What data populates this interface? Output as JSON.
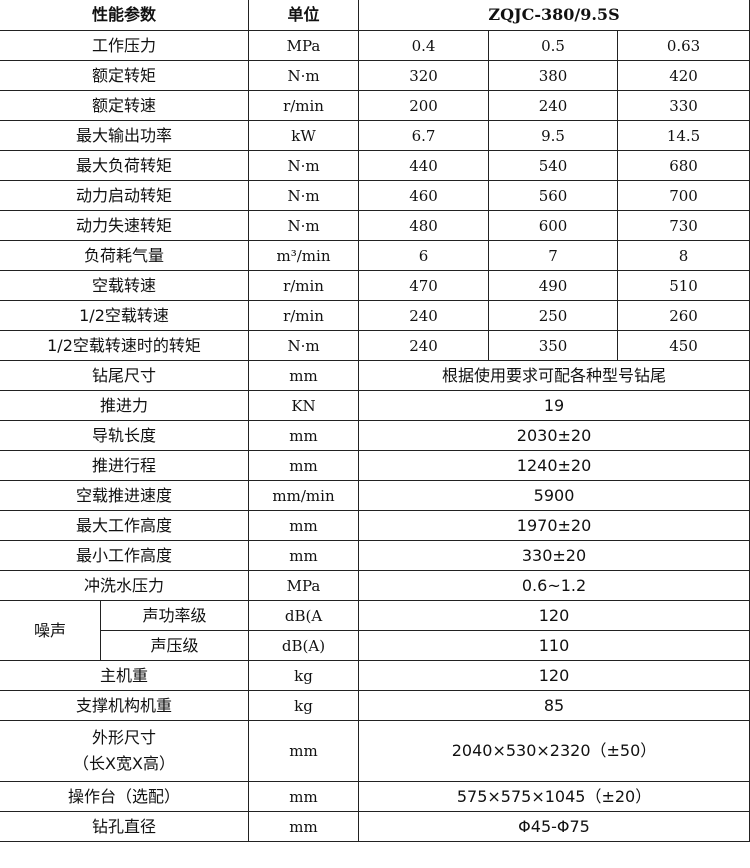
{
  "header": {
    "param": "性能参数",
    "unit": "单位",
    "model": "ZQJC-380/9.5S"
  },
  "multi_rows": [
    {
      "name": "工作压力",
      "unit": "MPa",
      "values": [
        "0.4",
        "0.5",
        "0.63"
      ]
    },
    {
      "name": "额定转矩",
      "unit": "N·m",
      "values": [
        "320",
        "380",
        "420"
      ]
    },
    {
      "name": "额定转速",
      "unit": "r/min",
      "values": [
        "200",
        "240",
        "330"
      ]
    },
    {
      "name": "最大输出功率",
      "unit": "kW",
      "values": [
        "6.7",
        "9.5",
        "14.5"
      ]
    },
    {
      "name": "最大负荷转矩",
      "unit": "N·m",
      "values": [
        "440",
        "540",
        "680"
      ]
    },
    {
      "name": "动力启动转矩",
      "unit": "N·m",
      "values": [
        "460",
        "560",
        "700"
      ]
    },
    {
      "name": "动力失速转矩",
      "unit": "N·m",
      "values": [
        "480",
        "600",
        "730"
      ]
    },
    {
      "name": "负荷耗气量",
      "unit": "m³/min",
      "values": [
        "6",
        "7",
        "8"
      ]
    },
    {
      "name": "空载转速",
      "unit": "r/min",
      "values": [
        "470",
        "490",
        "510"
      ]
    },
    {
      "name": "1/2空载转速",
      "unit": "r/min",
      "values": [
        "240",
        "250",
        "260"
      ]
    },
    {
      "name": "1/2空载转速时的转矩",
      "unit": "N·m",
      "values": [
        "240",
        "350",
        "450"
      ]
    }
  ],
  "single_rows_a": [
    {
      "name": "钻尾尺寸",
      "unit": "mm",
      "value": "根据使用要求可配各种型号钻尾"
    },
    {
      "name": "推进力",
      "unit": "KN",
      "value": "19"
    },
    {
      "name": "导轨长度",
      "unit": "mm",
      "value": "2030±20"
    },
    {
      "name": "推进行程",
      "unit": "mm",
      "value": "1240±20"
    },
    {
      "name": "空载推进速度",
      "unit": "mm/min",
      "value": "5900"
    },
    {
      "name": "最大工作高度",
      "unit": "mm",
      "value": "1970±20"
    },
    {
      "name": "最小工作高度",
      "unit": "mm",
      "value": "330±20"
    },
    {
      "name": "冲洗水压力",
      "unit": "MPa",
      "value": "0.6~1.2"
    }
  ],
  "noise": {
    "label": "噪声",
    "rows": [
      {
        "name": "声功率级",
        "unit": "dB(A",
        "value": "120"
      },
      {
        "name": "声压级",
        "unit": "dB(A)",
        "value": "110"
      }
    ]
  },
  "single_rows_b": [
    {
      "name": "主机重",
      "unit": "kg",
      "value": "120"
    },
    {
      "name": "支撑机构机重",
      "unit": "kg",
      "value": "85"
    }
  ],
  "dims": {
    "name_line1": "外形尺寸",
    "name_line2": "（长X宽X高）",
    "unit": "mm",
    "value": "2040×530×2320（±50）"
  },
  "single_rows_c": [
    {
      "name": "操作台（选配）",
      "unit": "mm",
      "value": "575×575×1045（±20）"
    },
    {
      "name": "钻孔直径",
      "unit": "mm",
      "value": "Φ45-Φ75"
    }
  ]
}
